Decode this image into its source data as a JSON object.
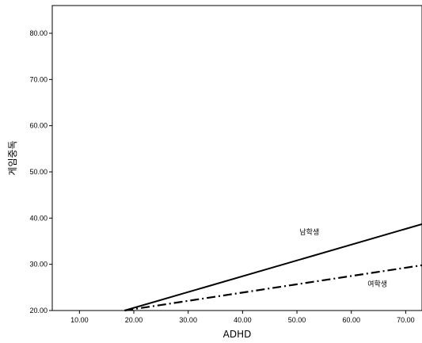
{
  "chart_data": {
    "type": "line",
    "xlabel": "ADHD",
    "ylabel": "게임중독",
    "xlim": [
      5,
      73
    ],
    "ylim": [
      20,
      86
    ],
    "x_ticks": [
      "10.00",
      "20.00",
      "30.00",
      "40.00",
      "50.00",
      "60.00",
      "70.00"
    ],
    "y_ticks": [
      "20.00",
      "30.00",
      "40.00",
      "50.00",
      "60.00",
      "70.00",
      "80.00"
    ],
    "grid": false,
    "legend": "none",
    "series": [
      {
        "name": "남학생",
        "style": "solid",
        "color": "#000000",
        "x": [
          18.3,
          73
        ],
        "y": [
          20,
          38.7
        ]
      },
      {
        "name": "여학생",
        "style": "dash-dot",
        "color": "#000000",
        "x": [
          18.3,
          73
        ],
        "y": [
          20,
          29.8
        ]
      }
    ],
    "annotations": [
      {
        "text": "남학생",
        "x": 52.3,
        "y": 36.5
      },
      {
        "text": "여학생",
        "x": 64.8,
        "y": 25.2
      }
    ]
  }
}
